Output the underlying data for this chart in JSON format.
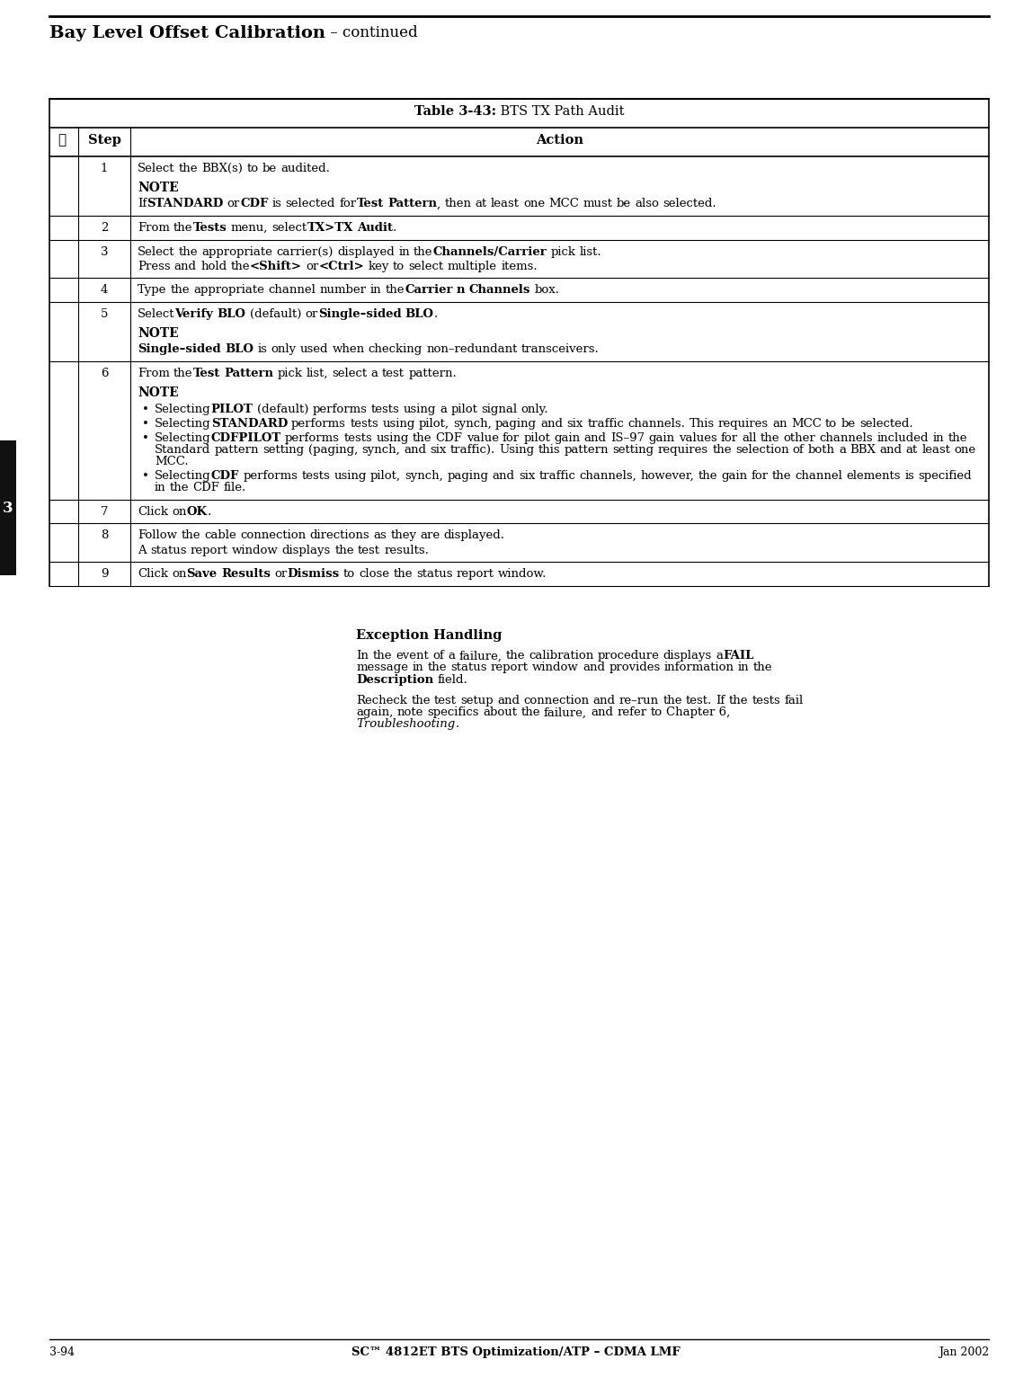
{
  "page_title_bold": "Bay Level Offset Calibration",
  "page_title_normal": " – continued",
  "table_title_bold": "Table 3-43:",
  "table_title_normal": " BTS TX Path Audit",
  "header_col1": "✓",
  "header_col2": "Step",
  "header_col3": "Action",
  "footer_left": "3-94",
  "footer_center": "SC™ 4812ET BTS Optimization/ATP – CDMA LMF",
  "footer_right": "Jan 2002",
  "background_color": "#ffffff",
  "rows": [
    {
      "step": "1",
      "lines": [
        [
          {
            "t": "Select the BBX(s) to be audited.",
            "b": false,
            "i": false
          }
        ],
        [
          {
            "t": "NOTE",
            "b": true,
            "i": false,
            "note": true
          }
        ],
        [
          {
            "t": "If ",
            "b": false,
            "i": false
          },
          {
            "t": "STANDARD",
            "b": true,
            "i": false
          },
          {
            "t": " or ",
            "b": false,
            "i": false
          },
          {
            "t": "CDF",
            "b": true,
            "i": false
          },
          {
            "t": " is selected for ",
            "b": false,
            "i": false
          },
          {
            "t": "Test Pattern",
            "b": true,
            "i": false
          },
          {
            "t": ", then at least one MCC must be also selected.",
            "b": false,
            "i": false
          }
        ]
      ]
    },
    {
      "step": "2",
      "lines": [
        [
          {
            "t": "From the ",
            "b": false,
            "i": false
          },
          {
            "t": "Tests",
            "b": true,
            "i": false
          },
          {
            "t": " menu, select ",
            "b": false,
            "i": false
          },
          {
            "t": "TX>TX Audit",
            "b": true,
            "i": false
          },
          {
            "t": ".",
            "b": false,
            "i": false
          }
        ]
      ]
    },
    {
      "step": "3",
      "lines": [
        [
          {
            "t": "Select the appropriate carrier(s) displayed in the ",
            "b": false,
            "i": false
          },
          {
            "t": "Channels/Carrier",
            "b": true,
            "i": false
          },
          {
            "t": " pick list.",
            "b": false,
            "i": false
          }
        ],
        [
          {
            "t": "Press and hold the ",
            "b": false,
            "i": false
          },
          {
            "t": "<Shift>",
            "b": true,
            "i": false
          },
          {
            "t": " or ",
            "b": false,
            "i": false
          },
          {
            "t": "<Ctrl>",
            "b": true,
            "i": false
          },
          {
            "t": " key to select multiple items.",
            "b": false,
            "i": false
          }
        ]
      ]
    },
    {
      "step": "4",
      "lines": [
        [
          {
            "t": "Type the appropriate channel number in the ",
            "b": false,
            "i": false
          },
          {
            "t": "Carrier n Channels",
            "b": true,
            "i": false
          },
          {
            "t": " box.",
            "b": false,
            "i": false
          }
        ]
      ]
    },
    {
      "step": "5",
      "lines": [
        [
          {
            "t": "Select ",
            "b": false,
            "i": false
          },
          {
            "t": "Verify BLO",
            "b": true,
            "i": false
          },
          {
            "t": " (default) or ",
            "b": false,
            "i": false
          },
          {
            "t": "Single–sided BLO",
            "b": true,
            "i": false
          },
          {
            "t": ".",
            "b": false,
            "i": false
          }
        ],
        [
          {
            "t": "NOTE",
            "b": true,
            "i": false,
            "note": true
          }
        ],
        [
          {
            "t": "Single–sided BLO",
            "b": true,
            "i": false
          },
          {
            "t": " is only used when checking non–redundant transceivers.",
            "b": false,
            "i": false
          }
        ]
      ]
    },
    {
      "step": "6",
      "lines": [
        [
          {
            "t": "From the ",
            "b": false,
            "i": false
          },
          {
            "t": "Test Pattern",
            "b": true,
            "i": false
          },
          {
            "t": " pick list, select a test pattern.",
            "b": false,
            "i": false
          }
        ],
        [
          {
            "t": "NOTE",
            "b": true,
            "i": false,
            "note": true
          }
        ],
        [
          {
            "t": "•",
            "b": false,
            "i": false,
            "bullet": true
          },
          {
            "t": "Selecting ",
            "b": false,
            "i": false
          },
          {
            "t": "PILOT",
            "b": true,
            "i": false
          },
          {
            "t": " (default) performs tests using a pilot signal only.",
            "b": false,
            "i": false
          }
        ],
        [
          {
            "t": "•",
            "b": false,
            "i": false,
            "bullet": true
          },
          {
            "t": "Selecting ",
            "b": false,
            "i": false
          },
          {
            "t": "STANDARD",
            "b": true,
            "i": false
          },
          {
            "t": " performs tests using pilot, synch, paging and six traffic channels. This requires an MCC to be selected.",
            "b": false,
            "i": false
          }
        ],
        [
          {
            "t": "•",
            "b": false,
            "i": false,
            "bullet": true
          },
          {
            "t": "Selecting ",
            "b": false,
            "i": false
          },
          {
            "t": "CDFPILOT",
            "b": true,
            "i": false
          },
          {
            "t": " performs tests using the CDF value for pilot gain and IS–97 gain values for all the other channels included in the Standard pattern setting (paging, synch, and six traffic). Using this pattern setting requires the selection of both a BBX and at least one MCC.",
            "b": false,
            "i": false
          }
        ],
        [
          {
            "t": "•",
            "b": false,
            "i": false,
            "bullet": true
          },
          {
            "t": "Selecting ",
            "b": false,
            "i": false
          },
          {
            "t": "CDF",
            "b": true,
            "i": false
          },
          {
            "t": " performs tests using pilot, synch, paging and six traffic channels, however, the gain for the channel elements is specified in the CDF file.",
            "b": false,
            "i": false
          }
        ]
      ]
    },
    {
      "step": "7",
      "lines": [
        [
          {
            "t": "Click on ",
            "b": false,
            "i": false
          },
          {
            "t": "OK",
            "b": true,
            "i": false
          },
          {
            "t": ".",
            "b": false,
            "i": false
          }
        ]
      ]
    },
    {
      "step": "8",
      "lines": [
        [
          {
            "t": "Follow the cable connection directions as they are displayed.",
            "b": false,
            "i": false
          }
        ],
        [
          {
            "t": "A status report window displays the test results.",
            "b": false,
            "i": false
          }
        ]
      ]
    },
    {
      "step": "9",
      "lines": [
        [
          {
            "t": "Click on ",
            "b": false,
            "i": false
          },
          {
            "t": "Save Results",
            "b": true,
            "i": false
          },
          {
            "t": " or ",
            "b": false,
            "i": false
          },
          {
            "t": "Dismiss",
            "b": true,
            "i": false
          },
          {
            "t": " to close the status report window.",
            "b": false,
            "i": false
          }
        ]
      ]
    }
  ],
  "exception_title": "Exception Handling",
  "exception_para1": [
    [
      {
        "t": "In the event of a failure, the calibration procedure displays a ",
        "b": false,
        "i": false
      },
      {
        "t": "FAIL",
        "b": true,
        "i": false
      }
    ],
    [
      {
        "t": "message in the status report window and provides information in the",
        "b": false,
        "i": false
      }
    ],
    [
      {
        "t": "Description",
        "b": true,
        "i": false
      },
      {
        "t": " field.",
        "b": false,
        "i": false
      }
    ]
  ],
  "exception_para2": [
    [
      {
        "t": "Recheck the test setup and connection and re–run the test. If the tests fail",
        "b": false,
        "i": false
      }
    ],
    [
      {
        "t": "again, note specifics about the failure, and refer to Chapter 6,",
        "b": false,
        "i": false
      }
    ],
    [
      {
        "t": "Troubleshooting",
        "b": false,
        "i": true
      },
      {
        "t": ".",
        "b": false,
        "i": false
      }
    ]
  ]
}
